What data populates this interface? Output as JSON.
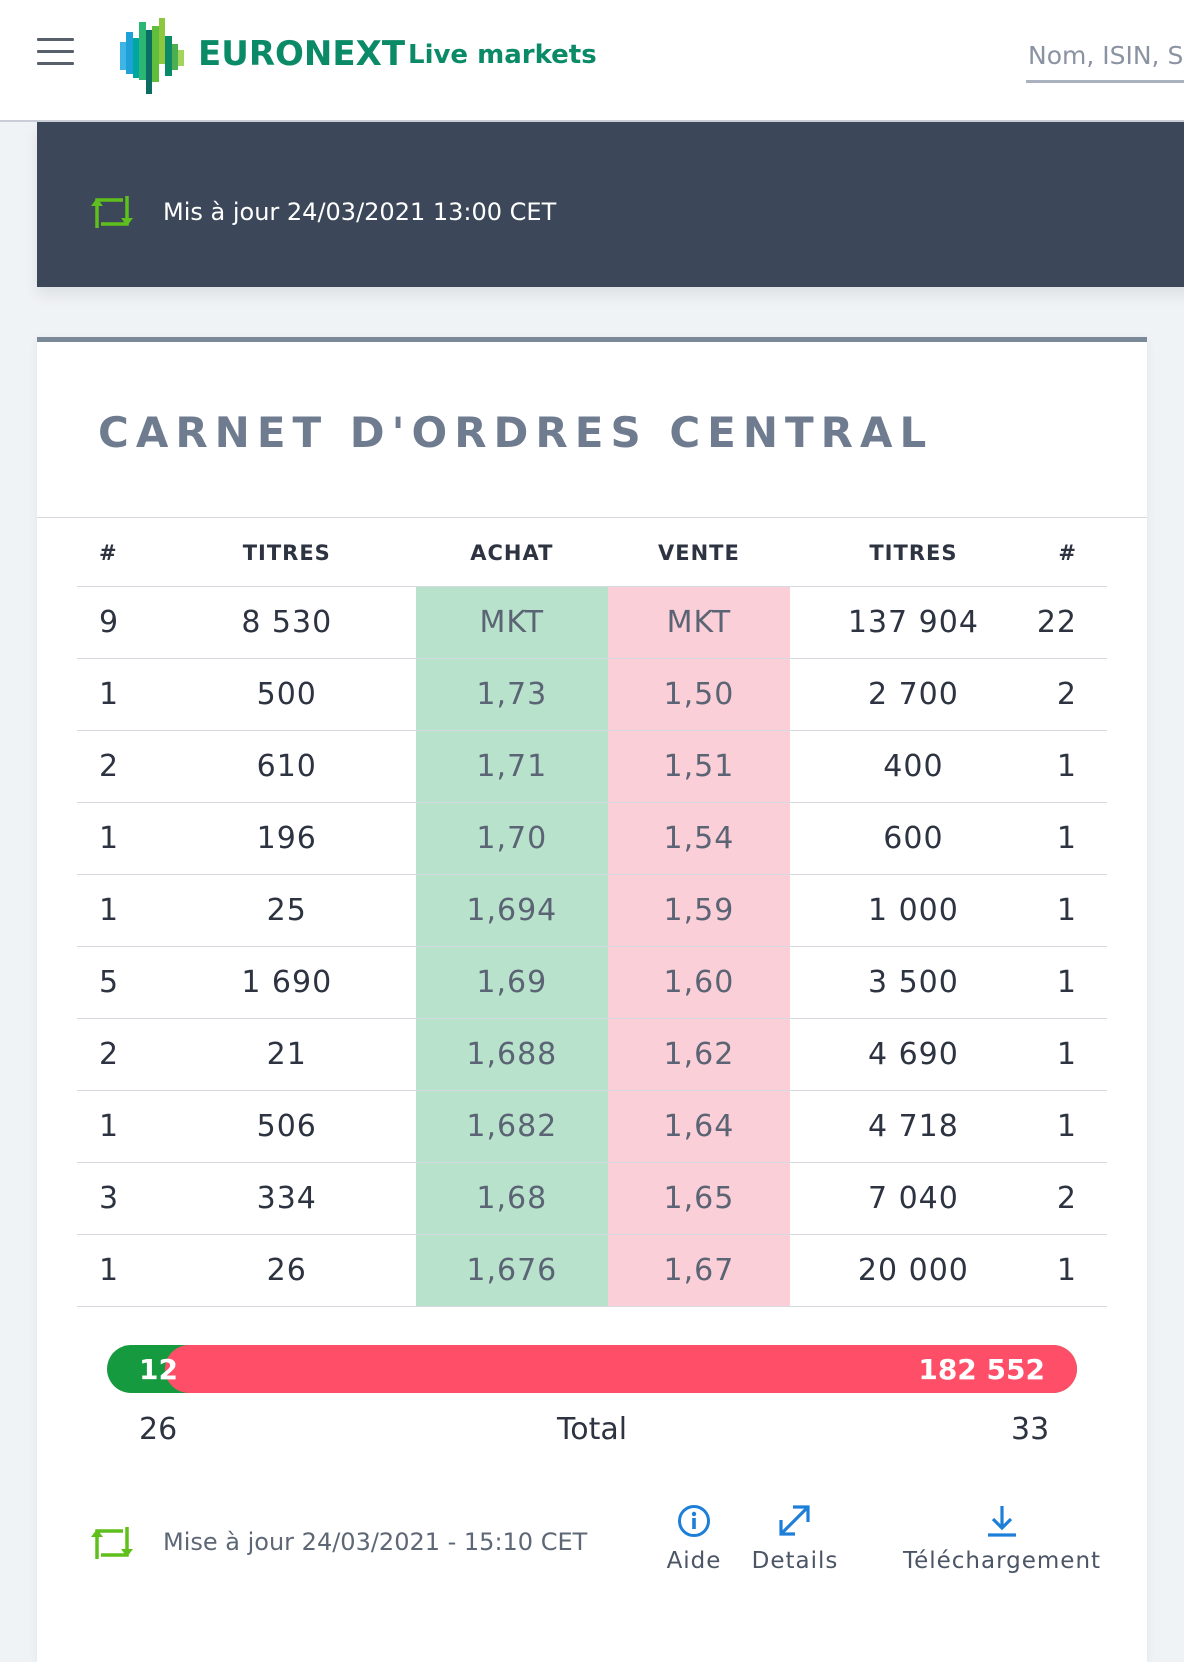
{
  "header": {
    "brand": "EURONEXT",
    "live_markets": "Live markets",
    "search_placeholder": "Nom, ISIN, S"
  },
  "banner": {
    "updated": "Mis à jour 24/03/2021 13:00 CET"
  },
  "order_book": {
    "title": "CARNET D'ORDRES CENTRAL",
    "columns": [
      "#",
      "TITRES",
      "ACHAT",
      "VENTE",
      "TITRES",
      "#"
    ],
    "rows": [
      [
        "9",
        "8 530",
        "MKT",
        "MKT",
        "137 904",
        "22"
      ],
      [
        "1",
        "500",
        "1,73",
        "1,50",
        "2 700",
        "2"
      ],
      [
        "2",
        "610",
        "1,71",
        "1,51",
        "400",
        "1"
      ],
      [
        "1",
        "196",
        "1,70",
        "1,54",
        "600",
        "1"
      ],
      [
        "1",
        "25",
        "1,694",
        "1,59",
        "1 000",
        "1"
      ],
      [
        "5",
        "1 690",
        "1,69",
        "1,60",
        "3 500",
        "1"
      ],
      [
        "2",
        "21",
        "1,688",
        "1,62",
        "4 690",
        "1"
      ],
      [
        "1",
        "506",
        "1,682",
        "1,64",
        "4 718",
        "1"
      ],
      [
        "3",
        "334",
        "1,68",
        "1,65",
        "7 040",
        "2"
      ],
      [
        "1",
        "26",
        "1,676",
        "1,67",
        "20 000",
        "1"
      ]
    ],
    "bar": {
      "buy_value_visible": "12",
      "sell_value": "182 552",
      "sell_share": 0.94
    },
    "totals": {
      "buy_orders": "26",
      "label": "Total",
      "sell_orders": "33"
    }
  },
  "footer": {
    "updated": "Mise à jour 24/03/2021 - 15:10 CET",
    "actions": {
      "help": "Aide",
      "details": "Details",
      "download": "Téléchargement"
    }
  },
  "colors": {
    "brand_green": "#0a8a66",
    "bid_bg": "#b8e2cb",
    "ask_bg": "#fbcfd7",
    "bar_green": "#169a3f",
    "bar_red": "#ff4f68",
    "icon_blue": "#1e7fd9",
    "refresh_green": "#5fbf1c"
  }
}
